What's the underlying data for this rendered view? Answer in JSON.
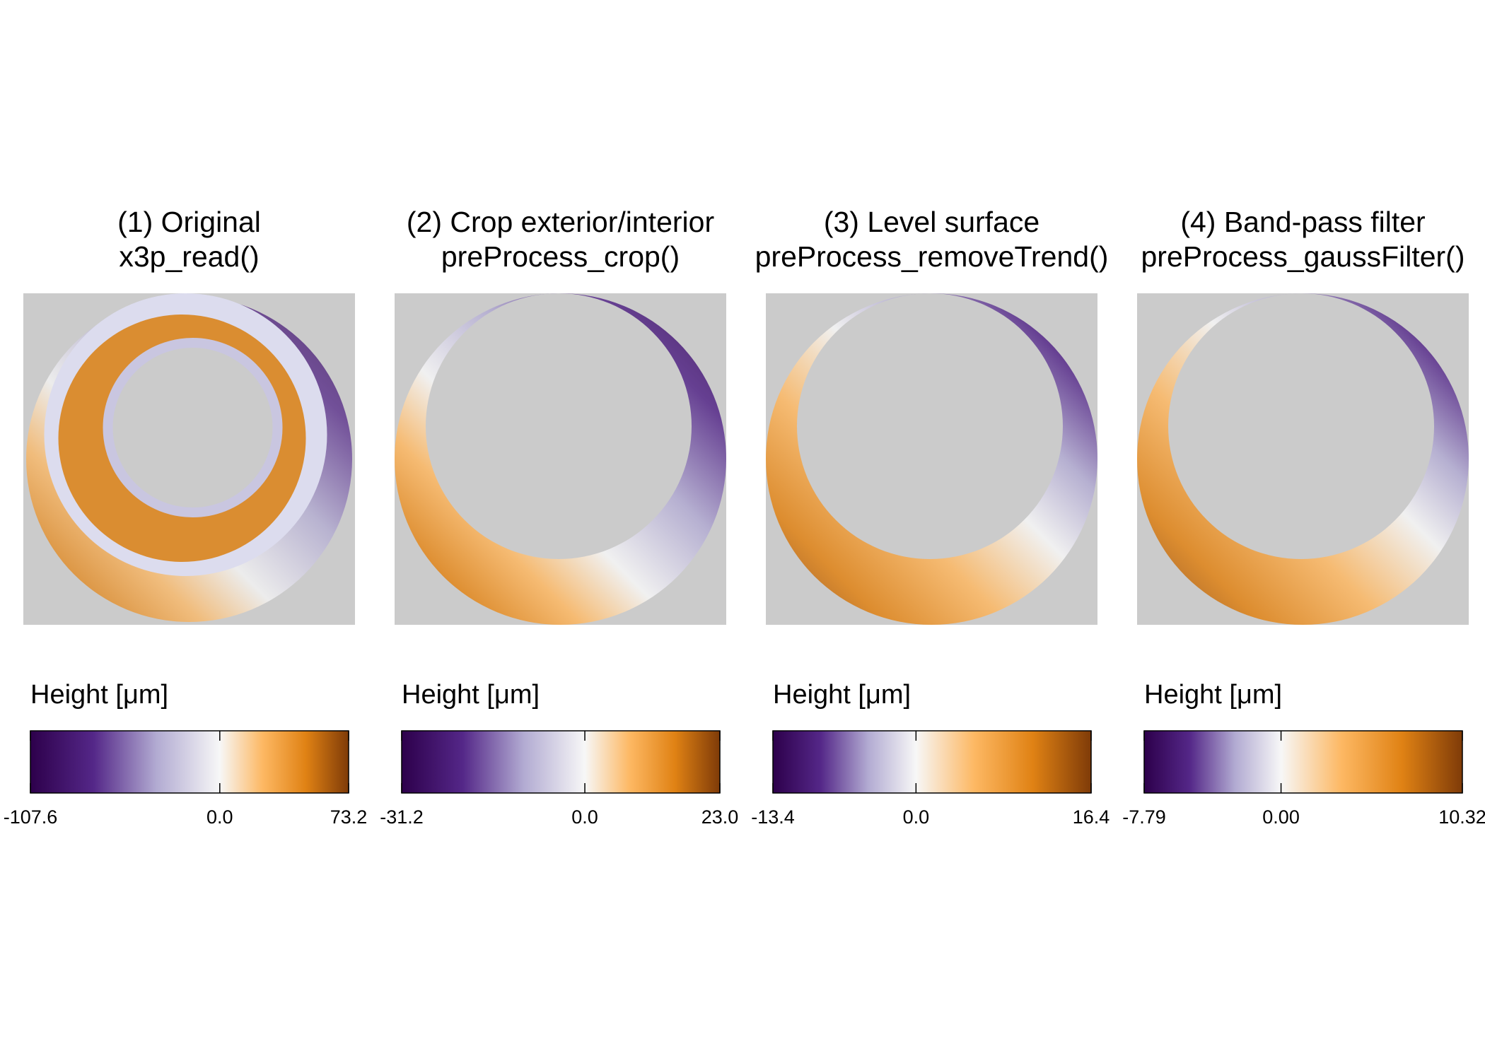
{
  "chart_data": [
    {
      "type": "heatmap",
      "title": "(1) Original",
      "subtitle": "x3p_read()",
      "legend_title": "Height [μm]",
      "clim": [
        -107.6,
        73.2
      ],
      "cticks": [
        -107.6,
        {
          "value": 0,
          "label": "0.0"
        },
        73.2
      ],
      "colors": [
        "#2d004b",
        "#542788",
        "#b2abd2",
        "#f7f7f7",
        "#fdb863",
        "#e08214",
        "#7f3b08"
      ]
    },
    {
      "type": "heatmap",
      "title": "(2) Crop exterior/interior",
      "subtitle": "preProcess_crop()",
      "legend_title": "Height [μm]",
      "clim": [
        -31.2,
        23
      ],
      "cticks": [
        -31.2,
        {
          "value": 0,
          "label": "0.0"
        },
        {
          "value": 23,
          "label": "23.0"
        }
      ],
      "colors": [
        "#2d004b",
        "#542788",
        "#b2abd2",
        "#f7f7f7",
        "#fdb863",
        "#e08214",
        "#7f3b08"
      ]
    },
    {
      "type": "heatmap",
      "title": "(3) Level surface",
      "subtitle": "preProcess_removeTrend()",
      "legend_title": "Height [μm]",
      "clim": [
        -13.4,
        16.4
      ],
      "cticks": [
        -13.4,
        {
          "value": 0,
          "label": "0.0"
        },
        16.4
      ],
      "colors": [
        "#2d004b",
        "#542788",
        "#b2abd2",
        "#f7f7f7",
        "#fdb863",
        "#e08214",
        "#7f3b08"
      ]
    },
    {
      "type": "heatmap",
      "title": "(4) Band-pass filter",
      "subtitle": "preProcess_gaussFilter()",
      "legend_title": "Height [μm]",
      "clim": [
        -7.79,
        10.32
      ],
      "cticks": [
        -7.79,
        {
          "value": 0,
          "label": "0.00"
        },
        10.32
      ],
      "colors": [
        "#2d004b",
        "#542788",
        "#b2abd2",
        "#f7f7f7",
        "#fdb863",
        "#e08214",
        "#7f3b08"
      ]
    }
  ]
}
